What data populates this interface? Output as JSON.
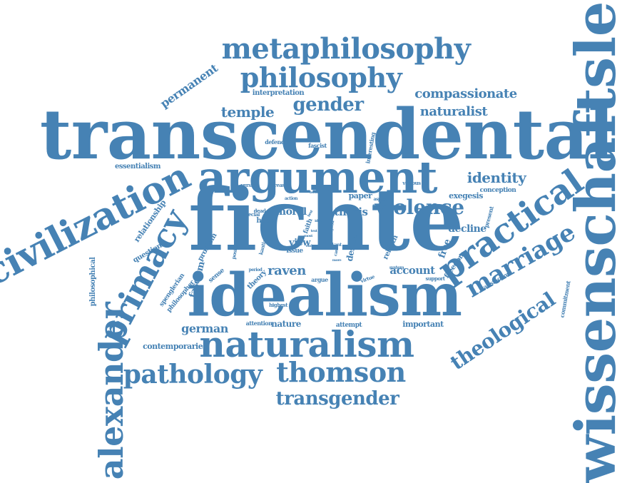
{
  "color": "#4682b4",
  "words": [
    {
      "text": "transcendental",
      "weight": 100,
      "rotate": 0
    },
    {
      "text": "fichte",
      "weight": 97,
      "rotate": 0
    },
    {
      "text": "idealism",
      "weight": 82,
      "rotate": 0
    },
    {
      "text": "wissenschaftslehre",
      "weight": 78,
      "rotate": -90
    },
    {
      "text": "argument",
      "weight": 72,
      "rotate": 0
    },
    {
      "text": "civilization",
      "weight": 56,
      "rotate": -27
    },
    {
      "text": "naturalism",
      "weight": 52,
      "rotate": 0
    },
    {
      "text": "practical",
      "weight": 48,
      "rotate": -35
    },
    {
      "text": "primacy",
      "weight": 46,
      "rotate": -62
    },
    {
      "text": "alexander",
      "weight": 44,
      "rotate": -90
    },
    {
      "text": "metaphilosophy",
      "weight": 40,
      "rotate": 0
    },
    {
      "text": "philosophy",
      "weight": 39,
      "rotate": 0
    },
    {
      "text": "pathology",
      "weight": 38,
      "rotate": 0
    },
    {
      "text": "thomson",
      "weight": 37,
      "rotate": 0
    },
    {
      "text": "marriage",
      "weight": 36,
      "rotate": -30
    },
    {
      "text": "violence",
      "weight": 27,
      "rotate": 0
    },
    {
      "text": "theological",
      "weight": 27,
      "rotate": -34
    },
    {
      "text": "transgender",
      "weight": 26,
      "rotate": 0
    },
    {
      "text": "gender",
      "weight": 26,
      "rotate": 0
    },
    {
      "text": "identity",
      "weight": 21,
      "rotate": 0
    },
    {
      "text": "temple",
      "weight": 20,
      "rotate": 0
    },
    {
      "text": "compassionate",
      "weight": 18,
      "rotate": 0
    },
    {
      "text": "naturalist",
      "weight": 18,
      "rotate": 0
    },
    {
      "text": "raven",
      "weight": 18,
      "rotate": 0
    },
    {
      "text": "permanent",
      "weight": 16,
      "rotate": -35
    },
    {
      "text": "german",
      "weight": 16,
      "rotate": 0
    },
    {
      "text": "thesis",
      "weight": 15,
      "rotate": 0
    },
    {
      "text": "account",
      "weight": 15,
      "rotate": 0
    },
    {
      "text": "decline",
      "weight": 14,
      "rotate": 0
    },
    {
      "text": "moral",
      "weight": 14,
      "rotate": 0
    },
    {
      "text": "view",
      "weight": 13,
      "rotate": 0
    },
    {
      "text": "fascism",
      "weight": 13,
      "rotate": -75
    },
    {
      "text": "free",
      "weight": 13,
      "rotate": -70
    },
    {
      "text": "desire",
      "weight": 12,
      "rotate": -80
    },
    {
      "text": "nature",
      "weight": 12,
      "rotate": 0
    },
    {
      "text": "exegesis",
      "weight": 11,
      "rotate": 0
    },
    {
      "text": "paper",
      "weight": 11,
      "rotate": 0
    },
    {
      "text": "relationship",
      "weight": 11,
      "rotate": -55
    },
    {
      "text": "important",
      "weight": 11,
      "rotate": 0
    },
    {
      "text": "contemporaries",
      "weight": 11,
      "rotate": 0
    },
    {
      "text": "philosophical",
      "weight": 10,
      "rotate": -90
    },
    {
      "text": "rebirth",
      "weight": 10,
      "rotate": -65
    },
    {
      "text": "question",
      "weight": 10,
      "rotate": -30
    },
    {
      "text": "interpretation",
      "weight": 10,
      "rotate": 0
    },
    {
      "text": "essentialism",
      "weight": 10,
      "rotate": 0
    },
    {
      "text": "problem",
      "weight": 10,
      "rotate": -60
    },
    {
      "text": "theory",
      "weight": 10,
      "rotate": -45
    },
    {
      "text": "hope",
      "weight": 10,
      "rotate": 0
    },
    {
      "text": "freedom",
      "weight": 10,
      "rotate": -55
    },
    {
      "text": "conception",
      "weight": 9,
      "rotate": 0
    },
    {
      "text": "spenglerian",
      "weight": 9,
      "rotate": -55
    },
    {
      "text": "philosopher",
      "weight": 9,
      "rotate": -50
    },
    {
      "text": "sense",
      "weight": 9,
      "rotate": -40
    },
    {
      "text": "attempt",
      "weight": 9,
      "rotate": 0
    },
    {
      "text": "faith",
      "weight": 9,
      "rotate": -70
    },
    {
      "text": "issue",
      "weight": 9,
      "rotate": 0
    },
    {
      "text": "argue",
      "weight": 8,
      "rotate": 0
    },
    {
      "text": "defence",
      "weight": 8,
      "rotate": 0
    },
    {
      "text": "fascist",
      "weight": 8,
      "rotate": 0
    },
    {
      "text": "interesting",
      "weight": 8,
      "rotate": -80
    },
    {
      "text": "satisfaction",
      "weight": 8,
      "rotate": -30
    },
    {
      "text": "commitment",
      "weight": 8,
      "rotate": -80
    },
    {
      "text": "present",
      "weight": 8,
      "rotate": -75
    },
    {
      "text": "attention",
      "weight": 8,
      "rotate": 0
    },
    {
      "text": "highest",
      "weight": 7,
      "rotate": 0
    },
    {
      "text": "virtue",
      "weight": 7,
      "rotate": -20
    },
    {
      "text": "support",
      "weight": 7,
      "rotate": 0
    },
    {
      "text": "kantian",
      "weight": 7,
      "rotate": -75
    },
    {
      "text": "position",
      "weight": 7,
      "rotate": -80
    },
    {
      "text": "special",
      "weight": 7,
      "rotate": 0
    },
    {
      "text": "dead",
      "weight": 7,
      "rotate": 0
    },
    {
      "text": "reason",
      "weight": 7,
      "rotate": 0
    },
    {
      "text": "version",
      "weight": 7,
      "rotate": 0
    },
    {
      "text": "various",
      "weight": 7,
      "rotate": 0
    },
    {
      "text": "action",
      "weight": 6,
      "rotate": 0
    },
    {
      "text": "aspect",
      "weight": 6,
      "rotate": 0
    },
    {
      "text": "work",
      "weight": 6,
      "rotate": 0
    },
    {
      "text": "case",
      "weight": 6,
      "rotate": -80
    },
    {
      "text": "kant",
      "weight": 6,
      "rotate": 0
    },
    {
      "text": "system",
      "weight": 6,
      "rotate": 0
    },
    {
      "text": "period",
      "weight": 6,
      "rotate": 0
    },
    {
      "text": "good",
      "weight": 6,
      "rotate": -80
    },
    {
      "text": "book",
      "weight": 5,
      "rotate": 0
    },
    {
      "text": "text",
      "weight": 5,
      "rotate": 0
    },
    {
      "text": "idea",
      "weight": 5,
      "rotate": 0
    },
    {
      "text": "most",
      "weight": 5,
      "rotate": 0
    },
    {
      "text": "more",
      "weight": 5,
      "rotate": 0
    },
    {
      "text": "best",
      "weight": 5,
      "rotate": -60
    },
    {
      "text": "end",
      "weight": 5,
      "rotate": 0
    }
  ]
}
